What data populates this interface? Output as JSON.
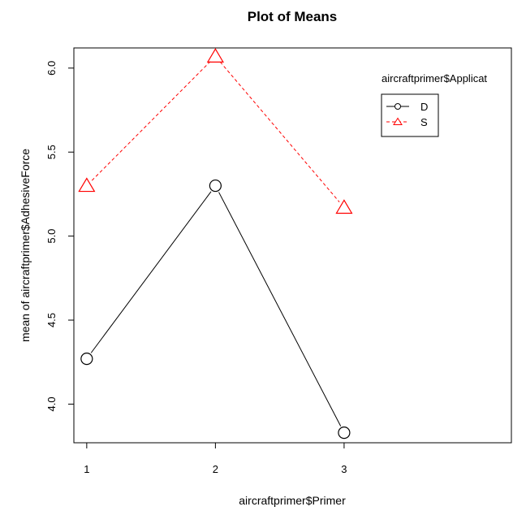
{
  "chart_data": {
    "type": "line",
    "title": "Plot of Means",
    "xlabel": "aircraftprimer$Primer",
    "ylabel": "mean of aircraftprimer$AdhesiveForce",
    "x": [
      1,
      2,
      3
    ],
    "x_ticks": [
      "1",
      "2",
      "3"
    ],
    "y_ticks": [
      "4.0",
      "4.5",
      "5.0",
      "5.5",
      "6.0"
    ],
    "xlim": [
      0.9,
      4.3
    ],
    "ylim": [
      3.77,
      6.12
    ],
    "legend": {
      "title": "aircraftprimer$Applicat",
      "position": "top-right"
    },
    "series": [
      {
        "name": "D",
        "values": [
          4.27,
          5.3,
          3.83
        ],
        "color": "#000000",
        "marker": "circle",
        "line": "solid"
      },
      {
        "name": "S",
        "values": [
          5.3,
          6.07,
          5.17
        ],
        "color": "#ff0000",
        "marker": "triangle",
        "line": "dashed"
      }
    ]
  }
}
